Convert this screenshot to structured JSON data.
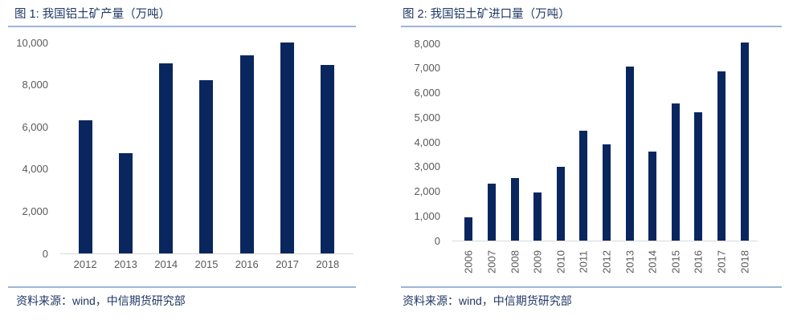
{
  "colors": {
    "bar": "#0A265F",
    "title_text": "#1F3864",
    "source_text": "#1F3864",
    "rule": "#9DB5D8",
    "axis_line": "#D9D9D9",
    "tick_text": "#595959",
    "background": "#FFFFFF"
  },
  "panels": [
    {
      "title": "图 1: 我国铝土矿产量（万吨）",
      "source": "资料来源：wind，中信期货研究部"
    },
    {
      "title": "图 2: 我国铝土矿进口量（万吨）",
      "source": "资料来源：wind，中信期货研究部"
    }
  ],
  "chart_data": [
    {
      "type": "bar",
      "title": "图 1: 我国铝土矿产量（万吨）",
      "unit": "万吨",
      "categories": [
        "2012",
        "2013",
        "2014",
        "2015",
        "2016",
        "2017",
        "2018"
      ],
      "values": [
        6300,
        4750,
        9000,
        8200,
        9400,
        10000,
        8950
      ],
      "xlabel": "",
      "ylabel": "",
      "ylim": [
        0,
        10000
      ],
      "ytick_step": 2000,
      "ytick_labels": [
        "0",
        "2,000",
        "4,000",
        "6,000",
        "8,000",
        "10,000"
      ],
      "grid": false,
      "legend": null,
      "bar_color": "#0A265F",
      "x_label_rotation": 0
    },
    {
      "type": "bar",
      "title": "图 2: 我国铝土矿进口量（万吨）",
      "unit": "万吨",
      "categories": [
        "2006",
        "2007",
        "2008",
        "2009",
        "2010",
        "2011",
        "2012",
        "2013",
        "2014",
        "2015",
        "2016",
        "2017",
        "2018"
      ],
      "values": [
        950,
        2300,
        2550,
        1950,
        3000,
        4450,
        3900,
        7050,
        3600,
        5550,
        5200,
        6850,
        8050
      ],
      "xlabel": "",
      "ylabel": "",
      "ylim": [
        0,
        8000
      ],
      "ytick_step": 1000,
      "ytick_labels": [
        "0",
        "1,000",
        "2,000",
        "3,000",
        "4,000",
        "5,000",
        "6,000",
        "7,000",
        "8,000"
      ],
      "grid": false,
      "legend": null,
      "bar_color": "#0A265F",
      "x_label_rotation": -90
    }
  ]
}
